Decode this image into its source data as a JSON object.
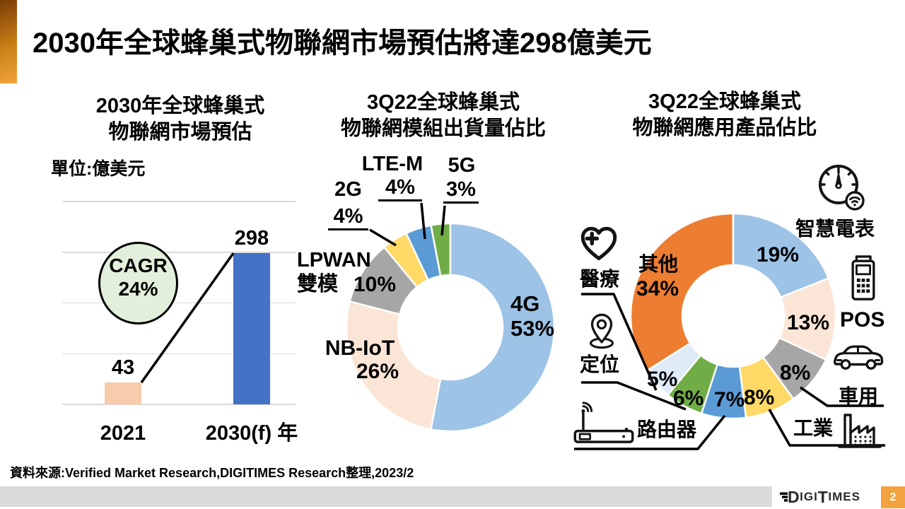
{
  "slide": {
    "title": "2030年全球蜂巢式物聯網市場預估將達298億美元",
    "source_note": "資料來源:Verified Market Research,DIGITIMES Research整理,2023/2",
    "page_number": "2",
    "logo_parts": [
      "D",
      "IGI",
      "T",
      "IMES"
    ],
    "colors": {
      "accent_bar_orange": "#E58E1A",
      "page_square_orange": "#F2A340",
      "footer_band_gray": "#DBDBDB",
      "logo_text": "#2A2A2A",
      "gridline_gray": "#D9D9D9"
    }
  },
  "chart_data": [
    {
      "id": "market-forecast-bar",
      "type": "bar",
      "title": "2030年全球蜂巢式物聯網市場預估",
      "title_lines": [
        "2030年全球蜂巢式",
        "物聯網市場預估"
      ],
      "unit_label": "單位:億美元",
      "categories": [
        "2021",
        "2030(f) 年"
      ],
      "values": [
        43,
        298
      ],
      "value_labels": [
        "43",
        "298"
      ],
      "bar_colors": [
        "#F8CBAD",
        "#4472C4"
      ],
      "ylim": [
        0,
        400
      ],
      "gridline_step": 100,
      "grid": true,
      "trend_line": true,
      "annotation": {
        "label": "CAGR",
        "value": "24%",
        "fill": "#E2EFDA"
      }
    },
    {
      "id": "module-shipment-share-donut",
      "type": "pie",
      "title": "3Q22全球蜂巢式物聯網模組出貨量佔比",
      "title_lines": [
        "3Q22全球蜂巢式",
        "物聯網模組出貨量佔比"
      ],
      "segments": [
        {
          "label": "4G",
          "pct": 53,
          "pct_label": "53%",
          "color": "#9DC3E6"
        },
        {
          "label": "NB-IoT",
          "pct": 26,
          "pct_label": "26%",
          "color": "#FBE5D6"
        },
        {
          "label": "LPWAN雙模",
          "label_lines": [
            "LPWAN",
            "雙模"
          ],
          "pct": 10,
          "pct_label": "10%",
          "color": "#A6A6A6"
        },
        {
          "label": "2G",
          "pct": 4,
          "pct_label": "4%",
          "color": "#FFD966"
        },
        {
          "label": "LTE-M",
          "pct": 4,
          "pct_label": "4%",
          "color": "#5B9BD5"
        },
        {
          "label": "5G",
          "pct": 3,
          "pct_label": "3%",
          "color": "#70AD47"
        }
      ]
    },
    {
      "id": "application-product-share-donut",
      "type": "pie",
      "title": "3Q22全球蜂巢式物聯網應用產品佔比",
      "title_lines": [
        "3Q22全球蜂巢式",
        "物聯網應用產品佔比"
      ],
      "segments": [
        {
          "label": "智慧電表",
          "pct": 19,
          "pct_label": "19%",
          "color": "#9DC3E6",
          "icon": "smart-meter-icon"
        },
        {
          "label": "POS",
          "pct": 13,
          "pct_label": "13%",
          "color": "#FBE5D6",
          "icon": "pos-terminal-icon"
        },
        {
          "label": "車用",
          "pct": 8,
          "pct_label": "8%",
          "color": "#A6A6A6",
          "icon": "car-icon"
        },
        {
          "label": "工業",
          "pct": 8,
          "pct_label": "8%",
          "color": "#FFD966",
          "icon": "factory-icon"
        },
        {
          "label": "路由器",
          "pct": 7,
          "pct_label": "7%",
          "color": "#5B9BD5",
          "icon": "router-icon"
        },
        {
          "label": "定位",
          "pct": 6,
          "pct_label": "6%",
          "color": "#70AD47",
          "icon": "location-pin-icon"
        },
        {
          "label": "醫療",
          "pct": 5,
          "pct_label": "5%",
          "color": "#DEEBF7",
          "icon": "medical-heart-icon"
        },
        {
          "label": "其他",
          "pct": 34,
          "pct_label": "34%",
          "color": "#ED7D31"
        }
      ]
    }
  ]
}
